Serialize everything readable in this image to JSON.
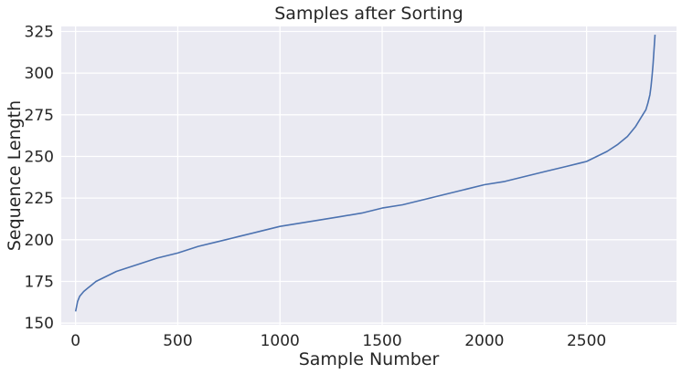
{
  "chart_data": {
    "type": "line",
    "title": "Samples after Sorting",
    "xlabel": "Sample Number",
    "ylabel": "Sequence Length",
    "xlim": [
      -70,
      2940
    ],
    "ylim": [
      149,
      328
    ],
    "x_ticks": [
      0,
      500,
      1000,
      1500,
      2000,
      2500
    ],
    "x_tick_labels": [
      "0",
      "500",
      "1000",
      "1500",
      "2000",
      "2500"
    ],
    "y_ticks": [
      150,
      175,
      200,
      225,
      250,
      275,
      300,
      325
    ],
    "y_tick_labels": [
      "150",
      "175",
      "200",
      "225",
      "250",
      "275",
      "300",
      "325"
    ],
    "grid": true,
    "background": "#eaeaf2",
    "grid_color": "#ffffff",
    "series": [
      {
        "color": "#4c72b0",
        "x": [
          0,
          10,
          20,
          40,
          60,
          80,
          100,
          150,
          200,
          250,
          300,
          400,
          500,
          600,
          700,
          800,
          900,
          1000,
          1100,
          1200,
          1300,
          1400,
          1500,
          1600,
          1700,
          1800,
          1900,
          2000,
          2100,
          2200,
          2300,
          2400,
          2500,
          2550,
          2600,
          2650,
          2700,
          2740,
          2770,
          2790,
          2800,
          2810,
          2815,
          2820,
          2825,
          2830,
          2835
        ],
        "y": [
          157,
          163,
          166,
          169,
          171,
          173,
          175,
          178,
          181,
          183,
          185,
          189,
          192,
          196,
          199,
          202,
          205,
          208,
          210,
          212,
          214,
          216,
          219,
          221,
          224,
          227,
          230,
          233,
          235,
          238,
          241,
          244,
          247,
          250,
          253,
          257,
          262,
          268,
          274,
          278,
          282,
          287,
          292,
          298,
          305,
          314,
          323
        ]
      }
    ]
  }
}
